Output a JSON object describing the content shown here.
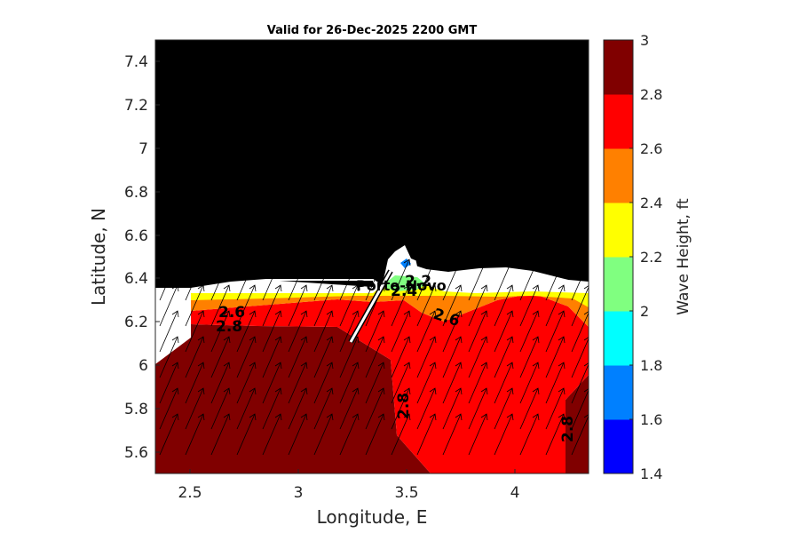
{
  "chart_data": {
    "type": "filled-contour map with vectors",
    "title": "Valid for 26-Dec-2025 2200 GMT",
    "xlabel": "Longitude, E",
    "ylabel": "Latitude, N",
    "xlim": [
      2.33,
      4.35
    ],
    "ylim": [
      5.5,
      7.5
    ],
    "xticks": [
      "2.5",
      "3",
      "3.5",
      "4"
    ],
    "yticks": [
      "5.6",
      "5.8",
      "6",
      "6.2",
      "6.4",
      "6.6",
      "6.8",
      "7",
      "7.2",
      "7.4"
    ],
    "colorbar": {
      "label": "Wave Height, ft",
      "ticks": [
        "1.4",
        "1.6",
        "1.8",
        "2",
        "2.2",
        "2.4",
        "2.6",
        "2.8",
        "3"
      ],
      "levels": [
        1.4,
        1.6,
        1.8,
        2.0,
        2.2,
        2.4,
        2.6,
        2.8,
        3.0
      ],
      "colors": [
        "#0000ff",
        "#0080ff",
        "#00ffff",
        "#80ff80",
        "#ffff00",
        "#ff8000",
        "#ff0000",
        "#800000"
      ]
    },
    "land_color": "#000000",
    "vector_direction": "north-east",
    "contour_labels": [
      "2.6",
      "2.8",
      "2.6",
      "2.8",
      "2.8",
      "2.4",
      "2.2"
    ],
    "place_label": "Porto-Novo"
  }
}
